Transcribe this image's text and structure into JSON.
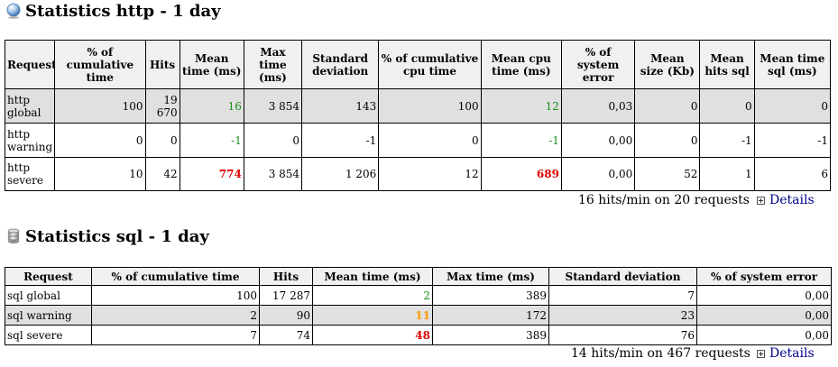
{
  "http": {
    "title": "Statistics http - 1 day",
    "icon": "globe-icon",
    "headers": [
      "Request",
      "% of cumulative time",
      "Hits",
      "Mean time (ms)",
      "Max time (ms)",
      "Standard deviation",
      "% of cumulative cpu time",
      "Mean cpu time (ms)",
      "% of system error",
      "Mean size (Kb)",
      "Mean hits sql",
      "Mean time sql (ms)"
    ],
    "rows": [
      {
        "request": "http global",
        "cumulative_time": "100",
        "hits": "19 670",
        "mean_time": "16",
        "max_time": "3 854",
        "std_dev": "143",
        "cpu_cumulative": "100",
        "mean_cpu": "12",
        "system_error": "0,03",
        "mean_size": "0",
        "mean_hits_sql": "0",
        "mean_time_sql": "0"
      },
      {
        "request": "http warning",
        "cumulative_time": "0",
        "hits": "0",
        "mean_time": "-1",
        "max_time": "0",
        "std_dev": "-1",
        "cpu_cumulative": "0",
        "mean_cpu": "-1",
        "system_error": "0,00",
        "mean_size": "0",
        "mean_hits_sql": "-1",
        "mean_time_sql": "-1"
      },
      {
        "request": "http severe",
        "cumulative_time": "10",
        "hits": "42",
        "mean_time": "774",
        "max_time": "3 854",
        "std_dev": "1 206",
        "cpu_cumulative": "12",
        "mean_cpu": "689",
        "system_error": "0,00",
        "mean_size": "52",
        "mean_hits_sql": "1",
        "mean_time_sql": "6"
      }
    ],
    "summary": "16 hits/min on 20 requests",
    "details_label": "Details"
  },
  "sql": {
    "title": "Statistics sql - 1 day",
    "icon": "database-icon",
    "headers": [
      "Request",
      "% of cumulative time",
      "Hits",
      "Mean time (ms)",
      "Max time (ms)",
      "Standard deviation",
      "% of system error"
    ],
    "rows": [
      {
        "request": "sql global",
        "cumulative_time": "100",
        "hits": "17 287",
        "mean_time": "2",
        "max_time": "389",
        "std_dev": "7",
        "system_error": "0,00"
      },
      {
        "request": "sql warning",
        "cumulative_time": "2",
        "hits": "90",
        "mean_time": "11",
        "max_time": "172",
        "std_dev": "23",
        "system_error": "0,00"
      },
      {
        "request": "sql severe",
        "cumulative_time": "7",
        "hits": "74",
        "mean_time": "48",
        "max_time": "389",
        "std_dev": "76",
        "system_error": "0,00"
      }
    ],
    "summary": "14 hits/min on 467 requests",
    "details_label": "Details"
  },
  "colors": {
    "good": "#1a8f1a",
    "warning": "#ff9900",
    "severe": "#e00000",
    "header_bg": "#f0f0f0",
    "highlight_row": "#e0e0e0",
    "link": "#00008b"
  }
}
